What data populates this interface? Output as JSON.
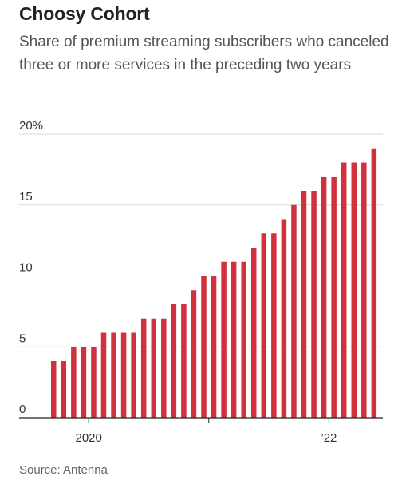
{
  "title": "Choosy Cohort",
  "subtitle": "Share of premium streaming subscribers who canceled three or more services in the preceding two years",
  "source": "Source: Antenna",
  "colors": {
    "bar": "#d0313d",
    "grid": "#d9d9d9",
    "axis": "#222222"
  },
  "chart_data": {
    "type": "bar",
    "title": "Choosy Cohort",
    "ylabel": "",
    "xlabel": "",
    "ylim": [
      0,
      20
    ],
    "y_ticks": [
      0,
      5,
      10,
      15,
      20
    ],
    "y_tick_labels": [
      "0",
      "5",
      "10",
      "15",
      "20%"
    ],
    "x_tick_labels": [
      {
        "label": "2020",
        "after_index": 3
      },
      {
        "label": "’22",
        "after_index": 27
      }
    ],
    "x_minor_tick_after_index": 15,
    "grid": true,
    "values": [
      4,
      4,
      5,
      5,
      5,
      6,
      6,
      6,
      6,
      7,
      7,
      7,
      8,
      8,
      9,
      10,
      10,
      11,
      11,
      11,
      12,
      13,
      13,
      14,
      15,
      16,
      16,
      17,
      17,
      18,
      18,
      18,
      19
    ]
  }
}
